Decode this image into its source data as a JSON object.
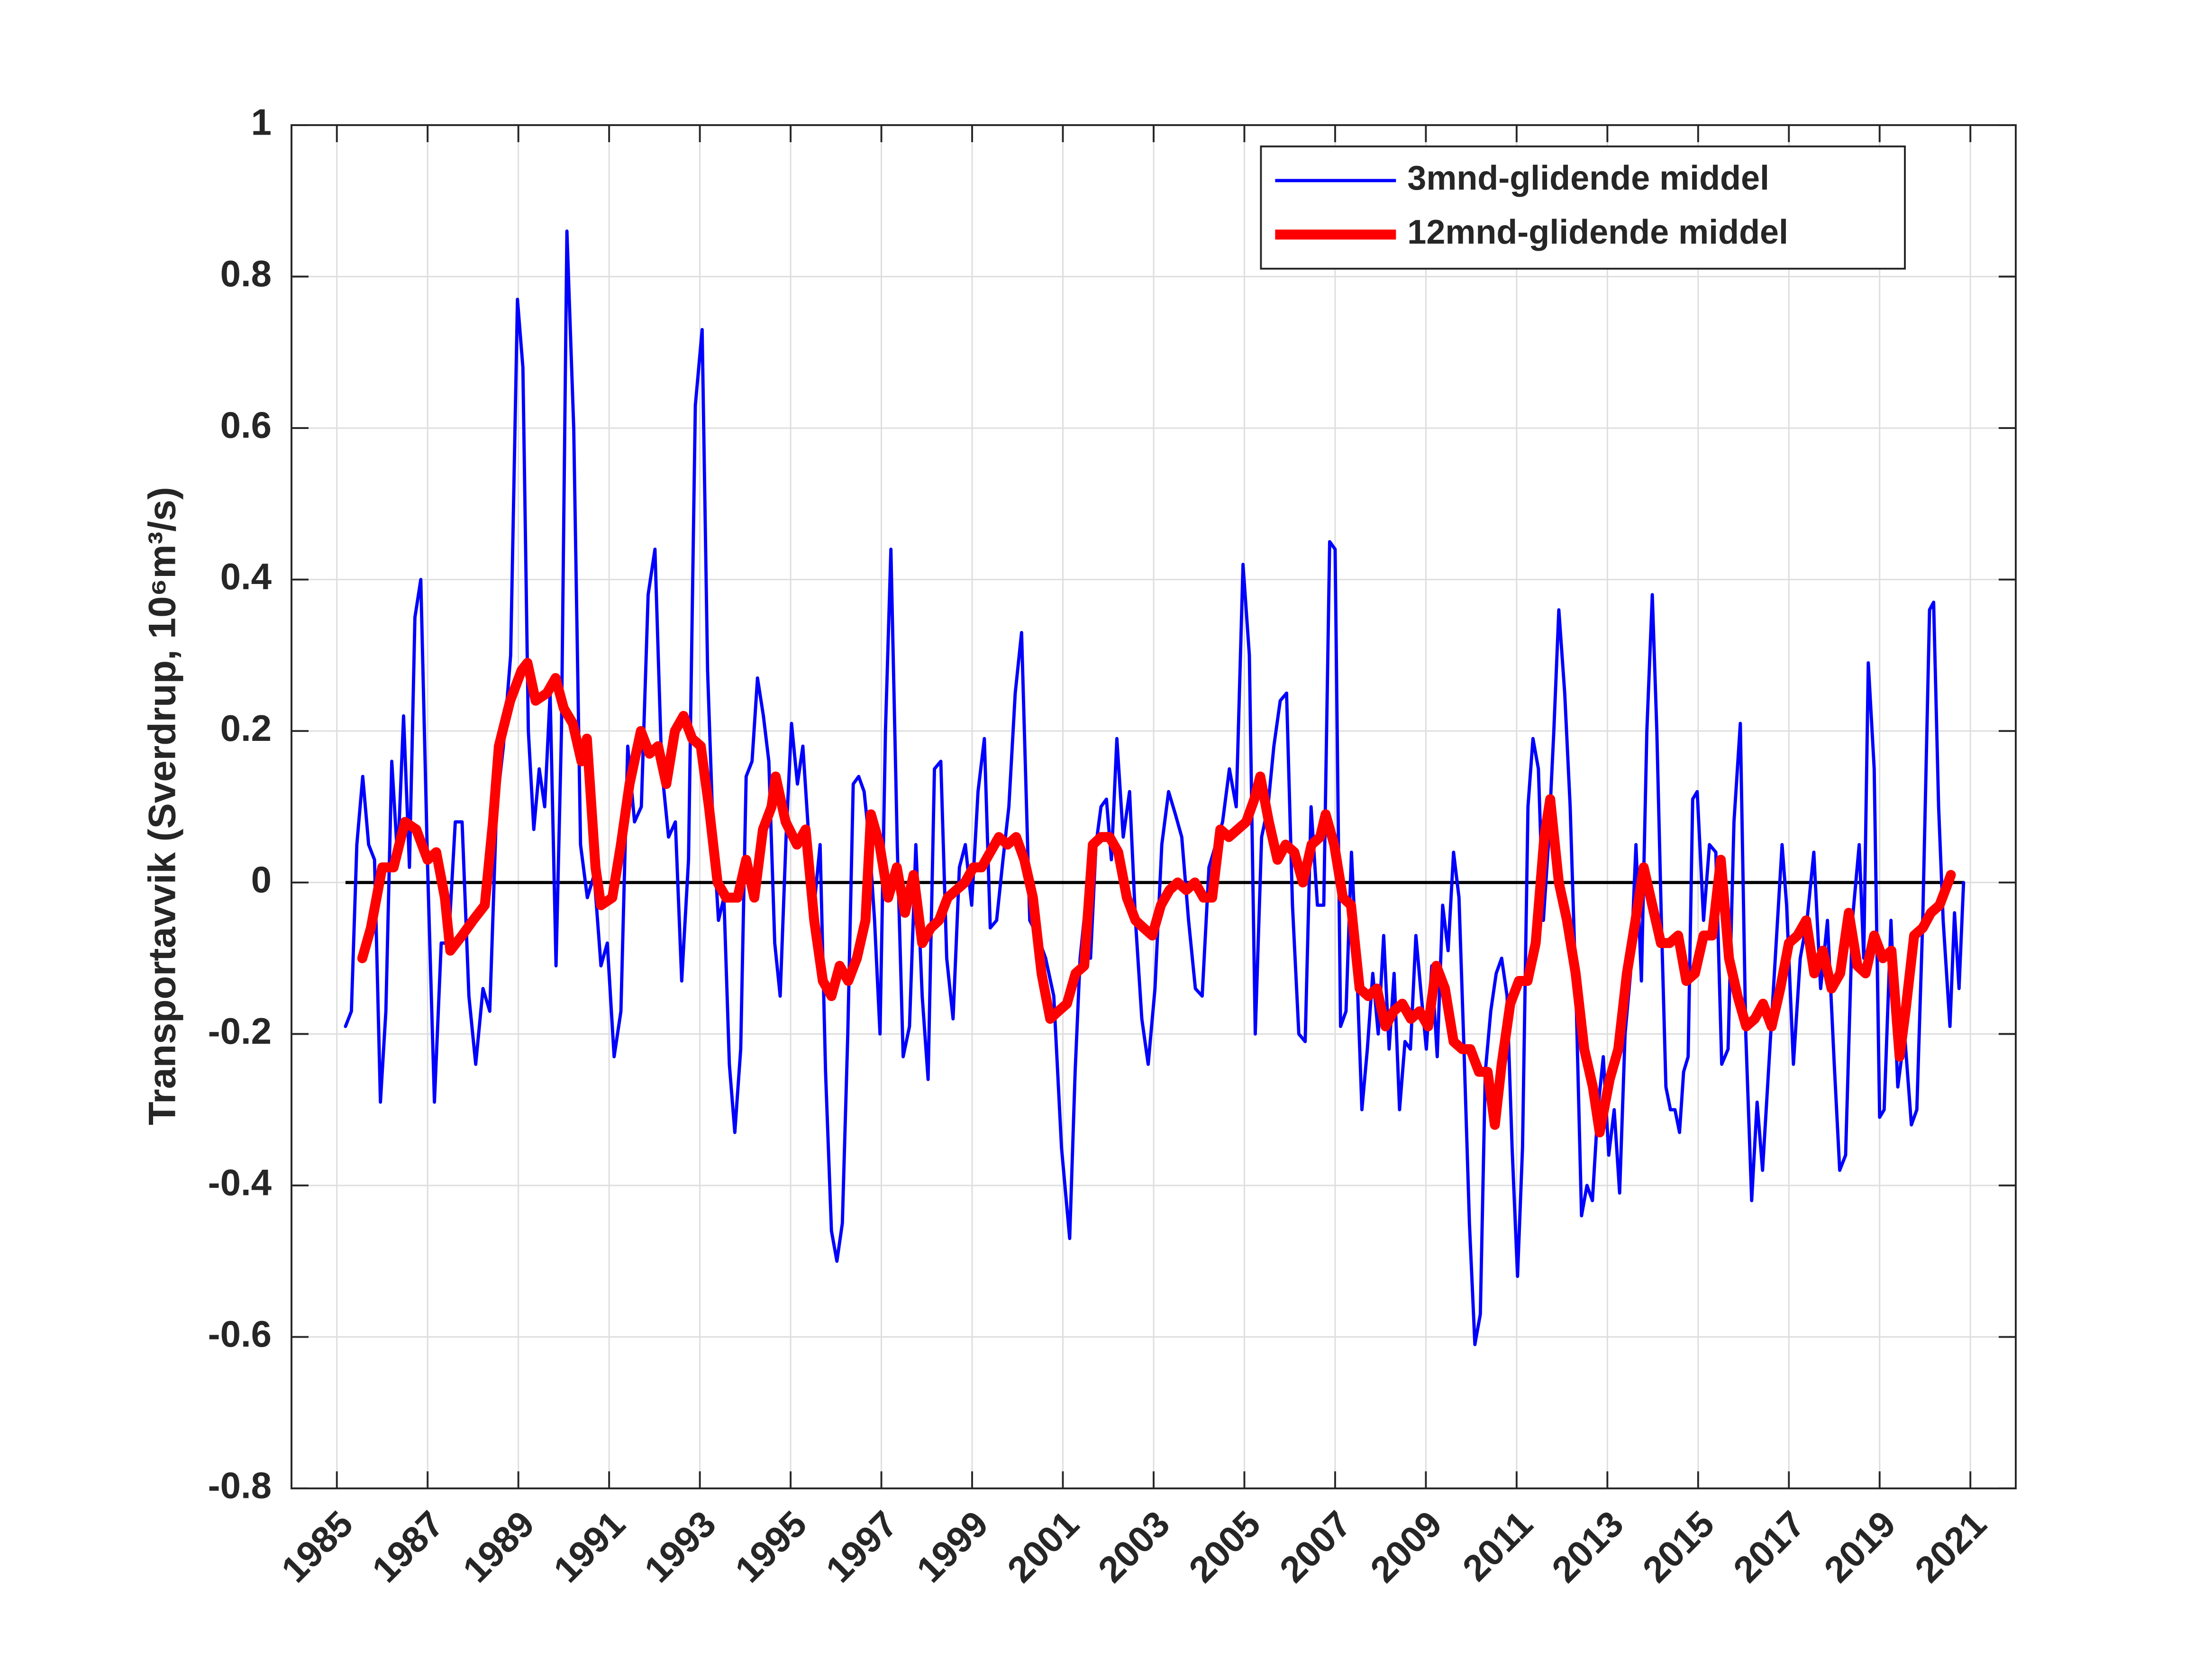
{
  "chart_data": {
    "type": "line",
    "ylabel": "Transportavvik (Sverdrup, 10⁶m³/s)",
    "xlim": [
      1984,
      2022
    ],
    "xticks": [
      1985,
      1987,
      1989,
      1991,
      1993,
      1995,
      1997,
      1999,
      2001,
      2003,
      2005,
      2007,
      2009,
      2011,
      2013,
      2015,
      2017,
      2019,
      2021
    ],
    "ylim": [
      -0.8,
      1
    ],
    "yticks": [
      -0.8,
      -0.6,
      -0.4,
      -0.2,
      0,
      0.2,
      0.4,
      0.6,
      0.8,
      1
    ],
    "grid": true,
    "legend": "upper right",
    "zero_line": {
      "y": 0,
      "x": [
        1985.19,
        2020.85
      ],
      "color": "#000000"
    },
    "series": [
      {
        "name": "3mnd-glidende middel",
        "color": "#0000ff",
        "x": [
          1985.19,
          1985.32,
          1985.44,
          1985.57,
          1985.7,
          1985.83,
          1985.96,
          1986.08,
          1986.21,
          1986.34,
          1986.47,
          1986.6,
          1986.72,
          1986.85,
          1987.0,
          1987.15,
          1987.3,
          1987.46,
          1987.61,
          1987.76,
          1987.91,
          1988.06,
          1988.22,
          1988.37,
          1988.52,
          1988.67,
          1988.83,
          1988.98,
          1989.1,
          1989.22,
          1989.34,
          1989.46,
          1989.58,
          1989.7,
          1989.83,
          1989.95,
          1990.07,
          1990.22,
          1990.37,
          1990.52,
          1990.67,
          1990.82,
          1990.96,
          1991.11,
          1991.26,
          1991.41,
          1991.56,
          1991.71,
          1991.86,
          1992.01,
          1992.16,
          1992.31,
          1992.46,
          1992.6,
          1992.75,
          1992.9,
          1993.05,
          1993.17,
          1993.29,
          1993.41,
          1993.53,
          1993.65,
          1993.77,
          1993.9,
          1994.02,
          1994.15,
          1994.27,
          1994.4,
          1994.52,
          1994.65,
          1994.77,
          1994.9,
          1995.02,
          1995.15,
          1995.27,
          1995.4,
          1995.52,
          1995.65,
          1995.77,
          1995.9,
          1996.02,
          1996.14,
          1996.26,
          1996.38,
          1996.5,
          1996.62,
          1996.74,
          1996.85,
          1996.97,
          1997.09,
          1997.21,
          1997.35,
          1997.48,
          1997.62,
          1997.76,
          1997.9,
          1998.03,
          1998.17,
          1998.31,
          1998.44,
          1998.58,
          1998.72,
          1998.85,
          1998.99,
          1999.13,
          1999.27,
          1999.4,
          1999.54,
          1999.68,
          1999.81,
          1999.95,
          2000.09,
          2000.27,
          2000.44,
          2000.62,
          2000.8,
          2000.97,
          2001.15,
          2001.27,
          2001.38,
          2001.5,
          2001.61,
          2001.73,
          2001.84,
          2001.96,
          2002.07,
          2002.19,
          2002.33,
          2002.47,
          2002.6,
          2002.74,
          2002.88,
          2003.03,
          2003.18,
          2003.33,
          2003.48,
          2003.62,
          2003.77,
          2003.92,
          2004.07,
          2004.22,
          2004.37,
          2004.52,
          2004.67,
          2004.82,
          2004.97,
          2005.11,
          2005.24,
          2005.38,
          2005.52,
          2005.65,
          2005.79,
          2005.93,
          2006.06,
          2006.2,
          2006.34,
          2006.47,
          2006.61,
          2006.75,
          2006.88,
          2007.0,
          2007.12,
          2007.24,
          2007.36,
          2007.47,
          2007.59,
          2007.71,
          2007.83,
          2007.95,
          2008.07,
          2008.19,
          2008.3,
          2008.42,
          2008.54,
          2008.66,
          2008.78,
          2008.9,
          2009.01,
          2009.13,
          2009.25,
          2009.37,
          2009.49,
          2009.61,
          2009.73,
          2009.84,
          2009.96,
          2010.08,
          2010.2,
          2010.31,
          2010.43,
          2010.55,
          2010.67,
          2010.79,
          2010.9,
          2011.02,
          2011.13,
          2011.25,
          2011.36,
          2011.48,
          2011.59,
          2011.7,
          2011.82,
          2011.93,
          2012.06,
          2012.18,
          2012.31,
          2012.43,
          2012.55,
          2012.67,
          2012.79,
          2012.91,
          2013.03,
          2013.15,
          2013.27,
          2013.39,
          2013.51,
          2013.63,
          2013.75,
          2013.87,
          2013.99,
          2014.09,
          2014.19,
          2014.29,
          2014.39,
          2014.49,
          2014.59,
          2014.68,
          2014.78,
          2014.88,
          2014.98,
          2015.12,
          2015.25,
          2015.39,
          2015.52,
          2015.66,
          2015.79,
          2015.93,
          2016.05,
          2016.18,
          2016.3,
          2016.42,
          2016.55,
          2016.7,
          2016.85,
          2016.95,
          2017.1,
          2017.25,
          2017.4,
          2017.55,
          2017.7,
          2017.85,
          2018.0,
          2018.12,
          2018.25,
          2018.4,
          2018.55,
          2018.65,
          2018.75,
          2018.88,
          2019.0,
          2019.1,
          2019.25,
          2019.4,
          2019.55,
          2019.7,
          2019.82,
          2019.95,
          2020.1,
          2020.19,
          2020.3,
          2020.4,
          2020.55,
          2020.65,
          2020.75,
          2020.85
        ],
        "values": [
          -0.19,
          -0.17,
          0.05,
          0.14,
          0.05,
          0.03,
          -0.29,
          -0.17,
          0.16,
          0.03,
          0.22,
          0.02,
          0.35,
          0.4,
          0.02,
          -0.29,
          -0.08,
          -0.08,
          0.08,
          0.08,
          -0.15,
          -0.24,
          -0.14,
          -0.17,
          0.1,
          0.18,
          0.3,
          0.77,
          0.68,
          0.2,
          0.07,
          0.15,
          0.1,
          0.25,
          -0.11,
          0.2,
          0.86,
          0.6,
          0.05,
          -0.02,
          0.01,
          -0.11,
          -0.08,
          -0.23,
          -0.17,
          0.18,
          0.08,
          0.1,
          0.38,
          0.44,
          0.15,
          0.06,
          0.08,
          -0.13,
          0.03,
          0.63,
          0.73,
          0.28,
          0.07,
          -0.05,
          -0.02,
          -0.24,
          -0.33,
          -0.22,
          0.14,
          0.16,
          0.27,
          0.22,
          0.16,
          -0.08,
          -0.15,
          0.06,
          0.21,
          0.13,
          0.18,
          0.06,
          -0.03,
          0.05,
          -0.25,
          -0.46,
          -0.5,
          -0.45,
          -0.2,
          0.13,
          0.14,
          0.12,
          0.05,
          -0.05,
          -0.2,
          0.2,
          0.44,
          0.05,
          -0.23,
          -0.19,
          0.05,
          -0.15,
          -0.26,
          0.15,
          0.16,
          -0.1,
          -0.18,
          0.02,
          0.05,
          -0.03,
          0.12,
          0.19,
          -0.06,
          -0.05,
          0.03,
          0.1,
          0.25,
          0.33,
          -0.05,
          -0.07,
          -0.1,
          -0.15,
          -0.35,
          -0.47,
          -0.25,
          -0.1,
          -0.03,
          -0.1,
          0.05,
          0.1,
          0.11,
          0.03,
          0.19,
          0.06,
          0.12,
          -0.05,
          -0.18,
          -0.24,
          -0.14,
          0.05,
          0.12,
          0.09,
          0.06,
          -0.05,
          -0.14,
          -0.15,
          0.02,
          0.05,
          0.08,
          0.15,
          0.1,
          0.42,
          0.3,
          -0.2,
          0.06,
          0.1,
          0.18,
          0.24,
          0.25,
          -0.03,
          -0.2,
          -0.21,
          0.1,
          -0.03,
          -0.03,
          0.45,
          0.44,
          -0.19,
          -0.17,
          0.04,
          -0.1,
          -0.3,
          -0.22,
          -0.12,
          -0.2,
          -0.07,
          -0.22,
          -0.12,
          -0.3,
          -0.21,
          -0.22,
          -0.07,
          -0.15,
          -0.22,
          -0.11,
          -0.23,
          -0.03,
          -0.09,
          0.04,
          -0.02,
          -0.22,
          -0.45,
          -0.61,
          -0.57,
          -0.25,
          -0.17,
          -0.12,
          -0.1,
          -0.15,
          -0.35,
          -0.52,
          -0.35,
          0.1,
          0.19,
          0.15,
          -0.05,
          0.05,
          0.2,
          0.36,
          0.25,
          0.1,
          -0.15,
          -0.44,
          -0.4,
          -0.42,
          -0.3,
          -0.23,
          -0.36,
          -0.3,
          -0.41,
          -0.2,
          -0.12,
          0.05,
          -0.13,
          0.2,
          0.38,
          0.2,
          -0.05,
          -0.27,
          -0.3,
          -0.3,
          -0.33,
          -0.25,
          -0.23,
          0.11,
          0.12,
          -0.05,
          0.05,
          0.04,
          -0.24,
          -0.22,
          0.08,
          0.21,
          -0.2,
          -0.42,
          -0.29,
          -0.38,
          -0.25,
          -0.1,
          0.05,
          -0.03,
          -0.24,
          -0.1,
          -0.05,
          0.04,
          -0.14,
          -0.05,
          -0.24,
          -0.38,
          -0.36,
          -0.05,
          0.05,
          -0.1,
          0.29,
          0.15,
          -0.31,
          -0.3,
          -0.05,
          -0.27,
          -0.2,
          -0.32,
          -0.3,
          -0.05,
          0.36,
          0.37,
          0.1,
          -0.05,
          -0.19,
          -0.04,
          -0.14,
          0
        ]
      },
      {
        "name": "12mnd-glidende middel",
        "color": "#ff0000",
        "x": [
          1985.56,
          1985.75,
          1986.0,
          1986.25,
          1986.5,
          1986.75,
          1987.0,
          1987.19,
          1987.38,
          1987.5,
          1987.76,
          1988.0,
          1988.26,
          1988.44,
          1988.57,
          1988.82,
          1989.07,
          1989.2,
          1989.38,
          1989.63,
          1989.82,
          1990.0,
          1990.2,
          1990.39,
          1990.51,
          1990.7,
          1990.82,
          1991.07,
          1991.26,
          1991.45,
          1991.7,
          1991.89,
          1992.08,
          1992.26,
          1992.45,
          1992.64,
          1992.83,
          1993.02,
          1993.2,
          1993.39,
          1993.58,
          1993.83,
          1994.02,
          1994.2,
          1994.39,
          1994.58,
          1994.67,
          1994.89,
          1995.14,
          1995.33,
          1995.52,
          1995.71,
          1995.9,
          1996.08,
          1996.27,
          1996.46,
          1996.65,
          1996.77,
          1996.96,
          1997.15,
          1997.34,
          1997.52,
          1997.71,
          1997.9,
          1998.09,
          1998.27,
          1998.46,
          1998.65,
          1998.84,
          1999.03,
          1999.21,
          1999.4,
          1999.59,
          1999.78,
          1999.97,
          2000.15,
          2000.34,
          2000.53,
          2000.72,
          2000.9,
          2001.09,
          2001.28,
          2001.47,
          2001.66,
          2001.84,
          2002.03,
          2002.22,
          2002.41,
          2002.6,
          2002.78,
          2002.97,
          2003.16,
          2003.35,
          2003.53,
          2003.72,
          2003.91,
          2004.1,
          2004.29,
          2004.47,
          2004.66,
          2004.85,
          2005.04,
          2005.22,
          2005.35,
          2005.54,
          2005.73,
          2005.91,
          2006.1,
          2006.29,
          2006.48,
          2006.67,
          2006.79,
          2006.98,
          2007.17,
          2007.35,
          2007.54,
          2007.73,
          2007.92,
          2008.11,
          2008.29,
          2008.48,
          2008.67,
          2008.86,
          2009.05,
          2009.23,
          2009.42,
          2009.61,
          2009.8,
          2009.98,
          2010.17,
          2010.36,
          2010.52,
          2010.67,
          2010.86,
          2011.05,
          2011.24,
          2011.42,
          2011.61,
          2011.74,
          2011.93,
          2012.11,
          2012.3,
          2012.49,
          2012.68,
          2012.83,
          2013.05,
          2013.24,
          2013.43,
          2013.62,
          2013.8,
          2013.99,
          2014.18,
          2014.37,
          2014.56,
          2014.74,
          2014.93,
          2015.12,
          2015.31,
          2015.5,
          2015.68,
          2015.87,
          2016.06,
          2016.25,
          2016.43,
          2016.62,
          2016.81,
          2017.0,
          2017.19,
          2017.38,
          2017.56,
          2017.75,
          2017.94,
          2018.13,
          2018.32,
          2018.51,
          2018.69,
          2018.88,
          2019.07,
          2019.26,
          2019.44,
          2019.57,
          2019.76,
          2019.95,
          2020.13,
          2020.32,
          2020.51,
          2020.57
        ],
        "values": [
          -0.1,
          -0.06,
          0.02,
          0.02,
          0.08,
          0.07,
          0.03,
          0.04,
          -0.02,
          -0.09,
          -0.07,
          -0.05,
          -0.03,
          0.08,
          0.18,
          0.24,
          0.28,
          0.29,
          0.24,
          0.25,
          0.27,
          0.23,
          0.21,
          0.16,
          0.19,
          0.02,
          -0.03,
          -0.02,
          0.05,
          0.13,
          0.2,
          0.17,
          0.18,
          0.13,
          0.2,
          0.22,
          0.19,
          0.18,
          0.1,
          0,
          -0.02,
          -0.02,
          0.03,
          -0.02,
          0.07,
          0.1,
          0.14,
          0.08,
          0.05,
          0.07,
          -0.05,
          -0.13,
          -0.15,
          -0.11,
          -0.13,
          -0.1,
          -0.05,
          0.09,
          0.05,
          -0.02,
          0.02,
          -0.04,
          0.01,
          -0.08,
          -0.06,
          -0.05,
          -0.02,
          -0.01,
          0,
          0.02,
          0.02,
          0.04,
          0.06,
          0.05,
          0.06,
          0.03,
          -0.02,
          -0.12,
          -0.18,
          -0.17,
          -0.16,
          -0.12,
          -0.11,
          0.05,
          0.06,
          0.06,
          0.04,
          -0.02,
          -0.05,
          -0.06,
          -0.07,
          -0.03,
          -0.01,
          0,
          -0.01,
          0,
          -0.02,
          -0.02,
          0.07,
          0.06,
          0.07,
          0.08,
          0.11,
          0.14,
          0.08,
          0.03,
          0.05,
          0.04,
          0,
          0.05,
          0.06,
          0.09,
          0.05,
          -0.02,
          -0.03,
          -0.14,
          -0.15,
          -0.14,
          -0.19,
          -0.17,
          -0.16,
          -0.18,
          -0.17,
          -0.19,
          -0.11,
          -0.14,
          -0.21,
          -0.22,
          -0.22,
          -0.25,
          -0.25,
          -0.32,
          -0.24,
          -0.16,
          -0.13,
          -0.13,
          -0.08,
          0.06,
          0.11,
          0,
          -0.05,
          -0.12,
          -0.22,
          -0.27,
          -0.33,
          -0.26,
          -0.22,
          -0.12,
          -0.05,
          0.02,
          -0.03,
          -0.08,
          -0.08,
          -0.07,
          -0.13,
          -0.12,
          -0.07,
          -0.07,
          0.03,
          -0.1,
          -0.15,
          -0.19,
          -0.18,
          -0.16,
          -0.19,
          -0.14,
          -0.08,
          -0.07,
          -0.05,
          -0.12,
          -0.09,
          -0.14,
          -0.12,
          -0.04,
          -0.11,
          -0.12,
          -0.07,
          -0.1,
          -0.09,
          -0.23,
          -0.17,
          -0.07,
          -0.06,
          -0.04,
          -0.03,
          0,
          0.01
        ]
      }
    ]
  }
}
